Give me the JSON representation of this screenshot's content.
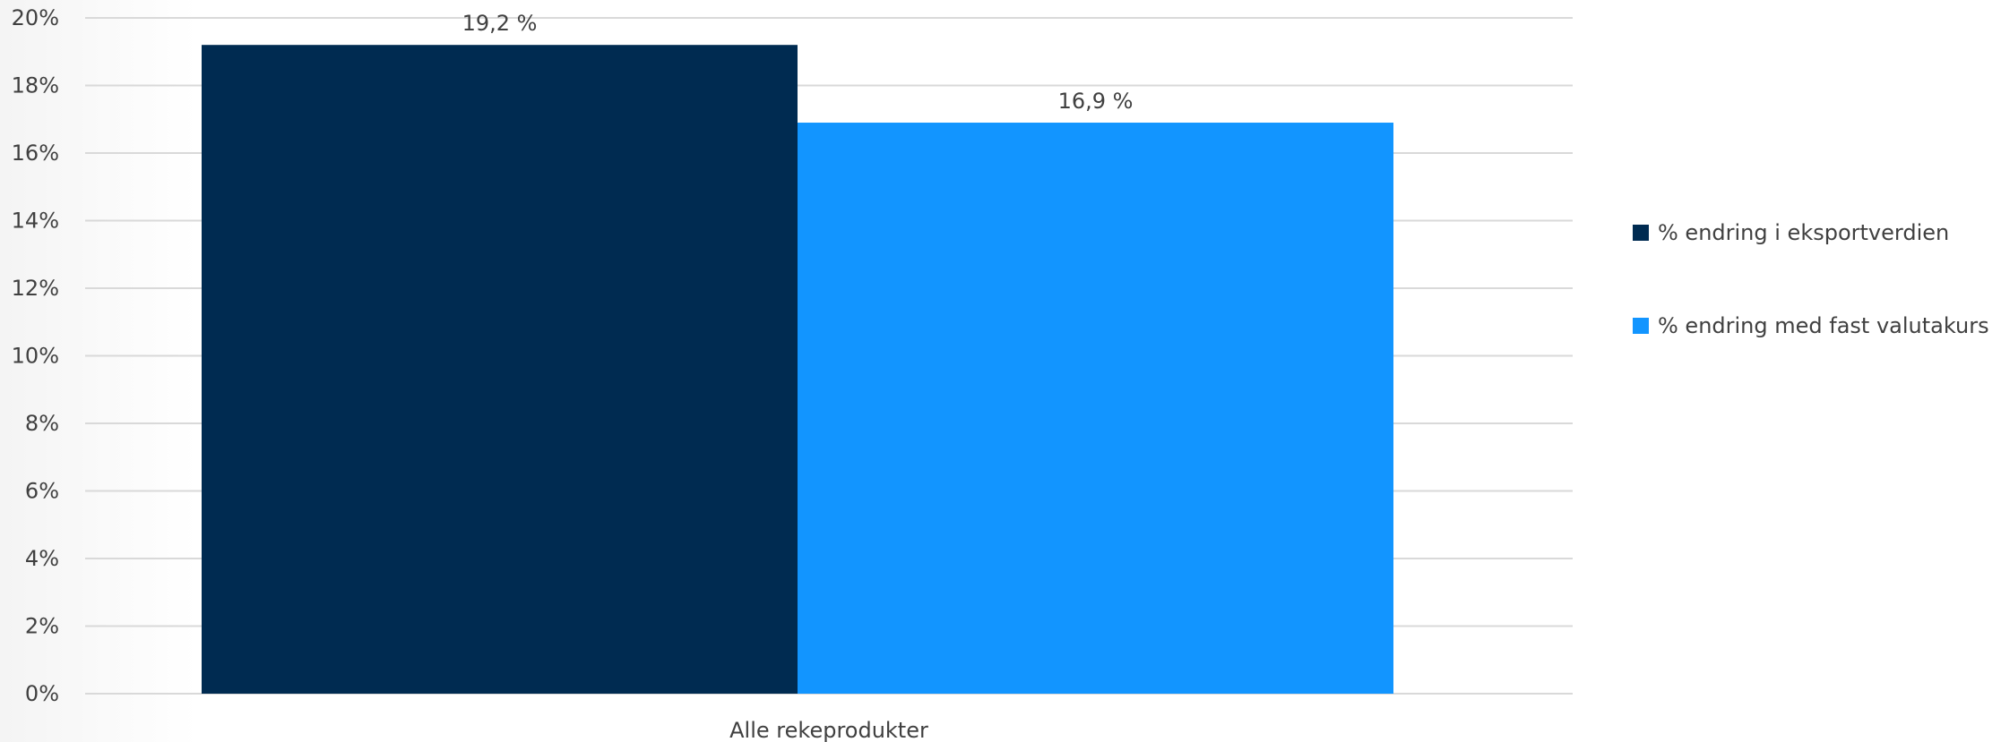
{
  "chart_data": {
    "type": "bar",
    "categories": [
      "Alle rekeprodukter"
    ],
    "series": [
      {
        "name": "% endring i eksportverdien",
        "values": [
          19.2
        ],
        "label": "19,2 %",
        "color": "#002b51"
      },
      {
        "name": "% endring med fast valutakurs",
        "values": [
          16.9
        ],
        "label": "16,9 %",
        "color": "#1295ff"
      }
    ],
    "yticks": [
      "0%",
      "2%",
      "4%",
      "6%",
      "8%",
      "10%",
      "12%",
      "14%",
      "16%",
      "18%",
      "20%"
    ],
    "ylim": [
      0,
      20
    ],
    "title": "",
    "xlabel": "",
    "ylabel": "",
    "grid": true,
    "legend_position": "right",
    "colors": {
      "grid": "#d9d9d9",
      "text": "#404040"
    }
  }
}
